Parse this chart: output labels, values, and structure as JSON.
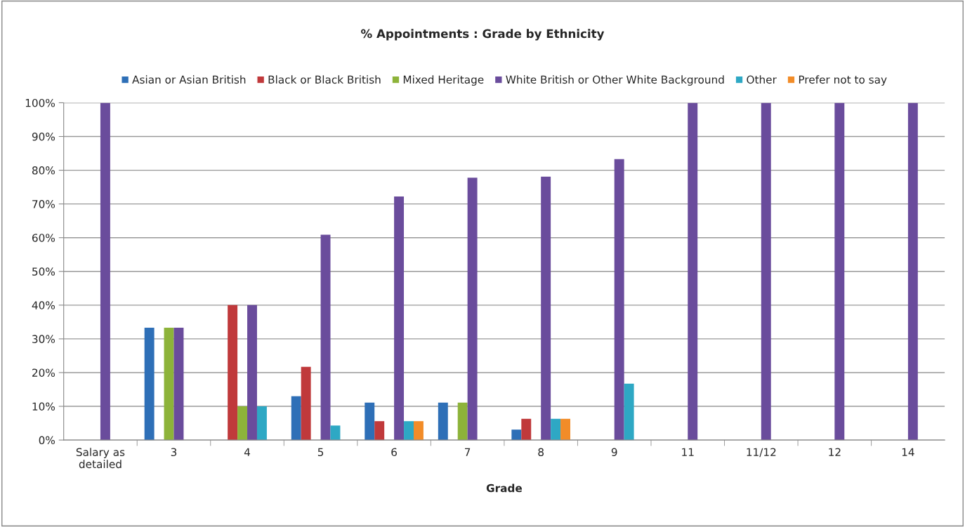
{
  "chart_data": {
    "type": "bar",
    "title": "% Appointments : Grade by Ethnicity",
    "xlabel": "Grade",
    "categories": [
      "Salary as\ndetailed",
      "3",
      "4",
      "5",
      "6",
      "7",
      "8",
      "9",
      "11",
      "11/12",
      "12",
      "14"
    ],
    "series": [
      {
        "name": "Asian or Asian British",
        "color": "#2e6fb7",
        "values": [
          null,
          33.3,
          null,
          13.0,
          11.1,
          11.1,
          3.1,
          null,
          null,
          null,
          null,
          null
        ]
      },
      {
        "name": "Black or Black British",
        "color": "#c0393b",
        "values": [
          null,
          null,
          40,
          21.7,
          5.6,
          null,
          6.3,
          null,
          null,
          null,
          null,
          null
        ]
      },
      {
        "name": "Mixed Heritage",
        "color": "#8db33a",
        "values": [
          null,
          33.3,
          10,
          null,
          null,
          11.1,
          null,
          null,
          null,
          null,
          null,
          null
        ]
      },
      {
        "name": "White British or Other White Background",
        "color": "#6a4c9c",
        "values": [
          100,
          33.3,
          40,
          60.9,
          72.2,
          77.8,
          78.1,
          83.3,
          100,
          100,
          100,
          100
        ]
      },
      {
        "name": "Other",
        "color": "#2ea8c4",
        "values": [
          null,
          null,
          10,
          4.3,
          5.6,
          null,
          6.3,
          16.7,
          null,
          null,
          null,
          null
        ]
      },
      {
        "name": "Prefer not to say",
        "color": "#f28c28",
        "values": [
          null,
          null,
          null,
          null,
          5.6,
          null,
          6.3,
          null,
          null,
          null,
          null,
          null
        ]
      }
    ],
    "ylim": [
      0,
      100
    ],
    "yticks": [
      {
        "value": 0,
        "label": "0%"
      },
      {
        "value": 10,
        "label": "10%"
      },
      {
        "value": 20,
        "label": "20%"
      },
      {
        "value": 30,
        "label": "30%"
      },
      {
        "value": 40,
        "label": "40%"
      },
      {
        "value": 50,
        "label": "50%"
      },
      {
        "value": 60,
        "label": "60%"
      },
      {
        "value": 70,
        "label": "70%"
      },
      {
        "value": 80,
        "label": "80%"
      },
      {
        "value": 90,
        "label": "90%"
      },
      {
        "value": 100,
        "label": "100%"
      }
    ],
    "grid": "y",
    "legend": "top"
  }
}
